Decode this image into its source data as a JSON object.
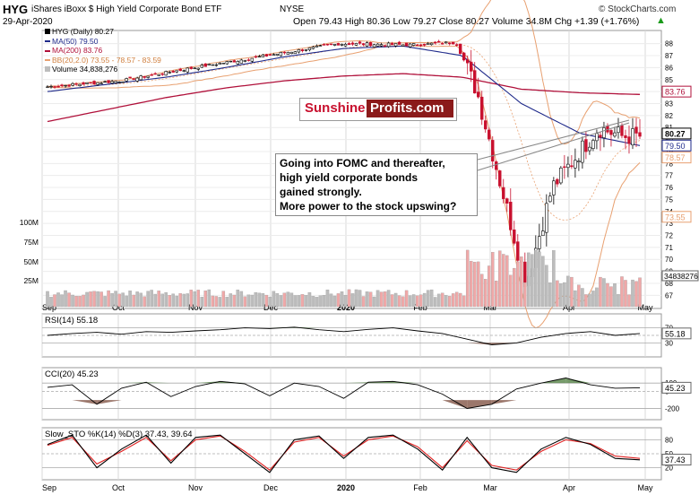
{
  "header": {
    "symbol": "HYG",
    "name": "iShares iBoxx $ High Yield Corporate Bond ETF",
    "exchange": "NYSE",
    "watermark": "© StockCharts.com",
    "date": "29-Apr-2020",
    "ohlc": "Open 79.43  High 80.36  Low 79.27  Close 80.27  Volume 34.8M  Chg +1.39 (+1.76%)",
    "chg_arrow": "▲"
  },
  "legend": {
    "price": "HYG (Daily) 80.27",
    "ma50": "MA(50) 79.50",
    "ma200": "MA(200) 83.76",
    "bb": "BB(20,2.0) 73.55 - 78.57 - 83.59",
    "volume": "Volume 34,838,276"
  },
  "logo": {
    "part1": "Sunshine",
    "part2": "Profits.com"
  },
  "callout": {
    "lines": [
      "Going into FOMC and thereafter,",
      "high yield corporate bonds",
      "gained strongly.",
      "More power to the stock upswing?"
    ]
  },
  "colors": {
    "up": "#000000",
    "down": "#c8102e",
    "ma50": "#1f2a8a",
    "ma200": "#b0103a",
    "bb": "#e8a070",
    "vol_up": "#bdbdbd",
    "vol_down": "#f0a8a8",
    "grid": "#d8d8d8",
    "rsi_fill": "#4a7a3a",
    "cci_fill": "#7a4a3a",
    "stoch_k": "#000000",
    "stoch_d": "#e02020"
  },
  "chart_data": {
    "type": "line",
    "x_labels": [
      "Sep",
      "Oct",
      "Nov",
      "Dec",
      "2020",
      "Feb",
      "Mar",
      "Apr",
      "May"
    ],
    "price_axis": {
      "ticks": [
        67,
        68,
        69,
        70,
        71,
        72,
        73,
        74,
        75,
        76,
        77,
        78,
        79,
        80,
        81,
        82,
        83,
        84,
        85,
        86,
        87,
        88
      ],
      "ylim": [
        66.5,
        88.5
      ]
    },
    "price_tags": {
      "close": "80.27",
      "ma50": "79.50",
      "bb_mid": "78.57",
      "bb_low": "73.55",
      "ma200": "83.76"
    },
    "volume_axis": {
      "ticks": [
        "100M",
        "75M",
        "50M",
        "25M"
      ],
      "tag": "34838276"
    },
    "price_anchors": {
      "x": [
        "Sep",
        "Oct",
        "Nov",
        "Dec",
        "2020",
        "Feb",
        "Feb-20",
        "Mar",
        "Mar-23",
        "Apr",
        "Apr-15",
        "Apr-29"
      ],
      "close": [
        84.4,
        84.9,
        86.0,
        87.0,
        88.0,
        87.9,
        88.1,
        84.0,
        68.0,
        76.0,
        81.0,
        80.27
      ]
    },
    "ma50_anchors": [
      84.0,
      84.6,
      85.2,
      86.0,
      86.9,
      87.6,
      87.8,
      87.0,
      83.0,
      80.5,
      79.5
    ],
    "ma200_anchors": [
      81.5,
      82.5,
      83.5,
      84.3,
      84.9,
      85.3,
      85.5,
      85.2,
      84.2,
      83.9,
      83.76
    ],
    "rsi": {
      "label": "RSI(14) 55.18",
      "ticks": [
        "70",
        "50",
        "30"
      ],
      "tag": "55.18",
      "ylim": [
        0,
        100
      ],
      "values": [
        50,
        55,
        58,
        53,
        60,
        58,
        62,
        65,
        70,
        68,
        72,
        65,
        60,
        66,
        70,
        62,
        55,
        40,
        25,
        30,
        45,
        55,
        60,
        50,
        55
      ]
    },
    "cci": {
      "label": "CCI(20) 45.23",
      "ticks": [
        "100",
        "0",
        "-200"
      ],
      "tag": "45.23",
      "ylim": [
        -300,
        250
      ],
      "values": [
        50,
        80,
        -150,
        40,
        110,
        -60,
        60,
        120,
        90,
        -50,
        100,
        60,
        -80,
        110,
        120,
        80,
        -30,
        -200,
        -150,
        30,
        100,
        160,
        80,
        40,
        45
      ]
    },
    "stoch": {
      "label": "Slow_STO %K(14) %D(3) 37.43, 39.64",
      "ticks": [
        "80",
        "50",
        "20"
      ],
      "tag": "37.43",
      "ylim": [
        0,
        100
      ],
      "k": [
        70,
        90,
        20,
        60,
        90,
        30,
        85,
        90,
        50,
        10,
        80,
        88,
        40,
        85,
        90,
        60,
        15,
        85,
        20,
        10,
        60,
        85,
        70,
        40,
        37
      ],
      "d": [
        68,
        85,
        28,
        55,
        85,
        35,
        80,
        88,
        55,
        15,
        75,
        85,
        45,
        80,
        88,
        65,
        20,
        78,
        25,
        15,
        55,
        80,
        72,
        45,
        40
      ]
    }
  }
}
